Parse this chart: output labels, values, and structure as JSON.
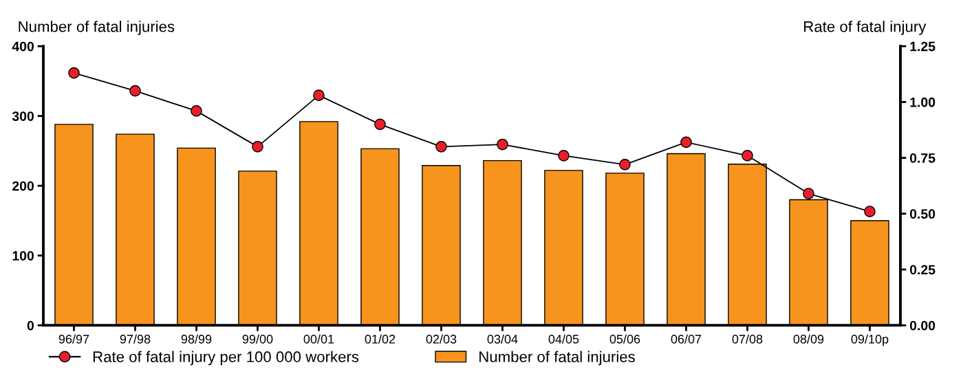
{
  "chart_data": {
    "type": "bar",
    "categories": [
      "96/97",
      "97/98",
      "98/99",
      "99/00",
      "00/01",
      "01/02",
      "02/03",
      "03/04",
      "04/05",
      "05/06",
      "06/07",
      "07/08",
      "08/09",
      "09/10p"
    ],
    "series": [
      {
        "name": "Number of fatal injuries",
        "color": "#f7941d",
        "values": [
          288,
          274,
          254,
          221,
          292,
          253,
          229,
          236,
          222,
          218,
          246,
          231,
          180,
          150
        ]
      },
      {
        "name": "Rate of fatal injury per 100 000 workers",
        "type": "line",
        "axis": "y2",
        "color": "#e8202a",
        "marker": "circle",
        "line_style": "solid",
        "values": [
          1.13,
          1.05,
          0.96,
          0.8,
          1.03,
          0.9,
          0.8,
          0.81,
          0.76,
          0.72,
          0.82,
          0.76,
          0.59,
          0.51
        ]
      }
    ],
    "ylabel": "Number of fatal injuries",
    "y2label": "Rate of fatal injury",
    "ylim": [
      0,
      400
    ],
    "yticks": [
      0,
      100,
      200,
      300,
      400
    ],
    "y2lim": [
      0,
      1.25
    ],
    "y2ticks": [
      {
        "value": 0,
        "label": "0.00"
      },
      {
        "value": 0.25,
        "label": "0.25"
      },
      {
        "value": 0.5,
        "label": "0.50"
      },
      {
        "value": 0.75,
        "label": "0.75"
      },
      {
        "value": 1.0,
        "label": "1.00"
      },
      {
        "value": 1.25,
        "label": "1.25"
      }
    ],
    "grid": false,
    "legend": "bottom"
  }
}
